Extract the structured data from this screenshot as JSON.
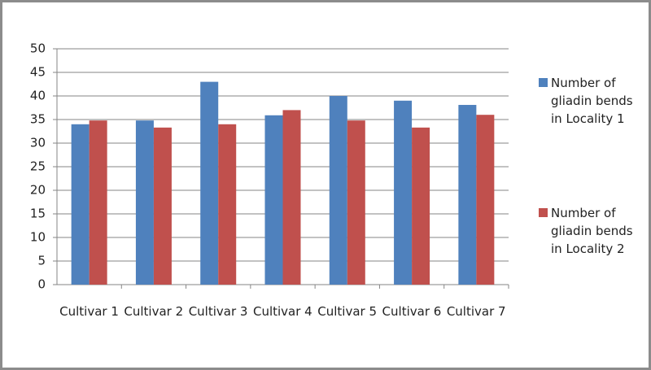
{
  "chart_data": {
    "type": "bar",
    "categories": [
      "Cultivar 1",
      "Cultivar 2",
      "Cultivar 3",
      "Cultivar 4",
      "Cultivar 5",
      "Cultivar 6",
      "Cultivar 7"
    ],
    "series": [
      {
        "name": "Number of gliadin bends in Locality 1",
        "color": "#4f81bd",
        "values": [
          34,
          34.8,
          43,
          35.9,
          40,
          39,
          38.1
        ]
      },
      {
        "name": "Number of gliadin bends in Locality 2",
        "color": "#c0504d",
        "values": [
          34.8,
          33.3,
          34,
          37,
          34.8,
          33.3,
          36
        ]
      }
    ],
    "ylim": [
      0,
      50
    ],
    "yticks": [
      0,
      5,
      10,
      15,
      20,
      25,
      30,
      35,
      40,
      45,
      50
    ],
    "grid": true,
    "legend": "right"
  }
}
